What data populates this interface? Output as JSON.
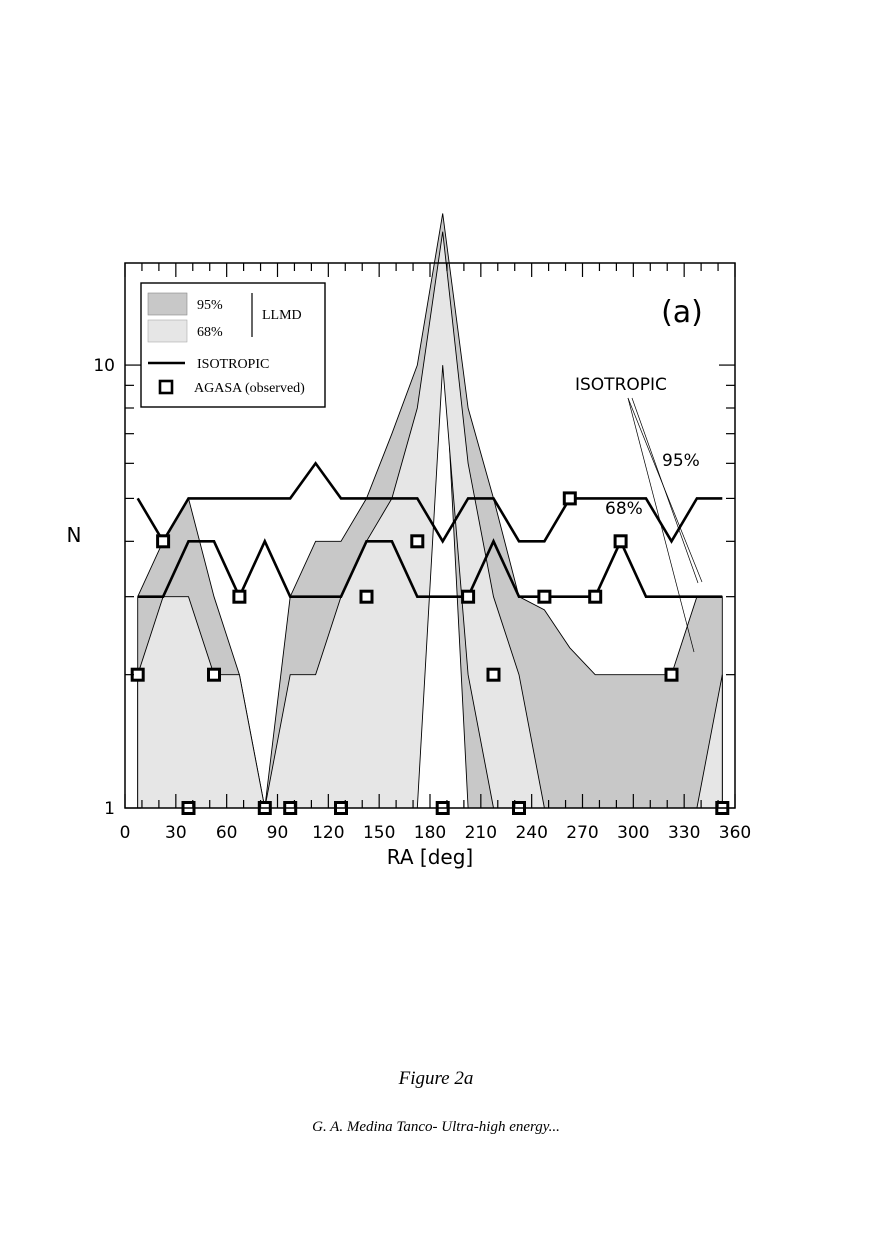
{
  "caption": {
    "title": "Figure 2a",
    "credit": "G. A. Medina Tanco- Ultra-high energy..."
  },
  "chart_data": {
    "type": "line",
    "panel_label": "(a)",
    "xlabel": "RA [deg]",
    "ylabel": "N",
    "xlim": [
      0,
      360
    ],
    "ylim": [
      1,
      17
    ],
    "yscale": "log",
    "x_ticks": [
      0,
      30,
      60,
      90,
      120,
      150,
      180,
      210,
      240,
      270,
      300,
      330,
      360
    ],
    "y_ticks": [
      1,
      10
    ],
    "grid": false,
    "legend": {
      "placement": "top-left",
      "entries": [
        "95%",
        "68%",
        "ISOTROPIC",
        "AGASA (observed)"
      ],
      "group_label": "LLMD"
    },
    "annotations": {
      "isotropic": "ISOTROPIC",
      "pct95": "95%",
      "pct68": "68%"
    },
    "band_95": {
      "x": [
        7.5,
        22.5,
        37.5,
        52.5,
        67.5,
        82.5,
        97.5,
        112.5,
        127.5,
        142.5,
        157.5,
        172.5,
        187.5,
        202.5,
        217.5,
        232.5,
        247.5,
        262.5,
        277.5,
        292.5,
        307.5,
        322.5,
        337.5,
        352.5
      ],
      "upper": [
        3,
        4,
        5,
        3,
        2,
        1,
        3,
        4,
        4,
        5,
        7,
        10,
        22,
        8,
        5,
        3,
        2.8,
        2.3,
        2,
        2,
        2,
        2,
        3,
        3
      ],
      "lower": [
        1,
        1,
        1,
        1,
        1,
        1,
        1,
        1,
        1,
        1,
        1,
        2,
        13,
        1,
        1,
        1,
        1,
        1,
        1,
        1,
        1,
        1,
        1,
        1
      ]
    },
    "band_68": {
      "x": [
        7.5,
        22.5,
        37.5,
        52.5,
        67.5,
        82.5,
        97.5,
        112.5,
        127.5,
        142.5,
        157.5,
        172.5,
        187.5,
        202.5,
        217.5,
        232.5,
        247.5,
        262.5,
        277.5,
        292.5,
        307.5,
        322.5,
        337.5,
        352.5
      ],
      "upper": [
        2,
        3,
        3,
        2,
        2,
        1,
        2,
        2,
        3,
        4,
        5,
        8,
        20,
        6,
        3,
        2,
        1,
        1,
        1,
        1,
        1,
        1,
        1,
        2
      ],
      "lower": [
        1,
        1,
        1,
        1,
        1,
        1,
        1,
        1,
        1,
        1,
        1,
        1,
        10,
        2,
        1,
        1,
        1,
        1,
        1,
        1,
        1,
        1,
        1,
        1
      ]
    },
    "series": [
      {
        "name": "ISOTROPIC",
        "role": "isotropic-95",
        "x": [
          7.5,
          22.5,
          37.5,
          52.5,
          67.5,
          82.5,
          97.5,
          112.5,
          127.5,
          142.5,
          157.5,
          172.5,
          187.5,
          202.5,
          217.5,
          232.5,
          247.5,
          262.5,
          277.5,
          292.5,
          307.5,
          322.5,
          337.5,
          352.5
        ],
        "values": [
          5,
          4,
          5,
          5,
          5,
          5,
          5,
          6,
          5,
          5,
          5,
          5,
          4,
          5,
          5,
          4,
          4,
          5,
          5,
          5,
          5,
          4,
          5,
          5
        ]
      },
      {
        "name": "ISOTROPIC",
        "role": "isotropic-68",
        "x": [
          7.5,
          22.5,
          37.5,
          52.5,
          67.5,
          82.5,
          97.5,
          112.5,
          127.5,
          142.5,
          157.5,
          172.5,
          187.5,
          202.5,
          217.5,
          232.5,
          247.5,
          262.5,
          277.5,
          292.5,
          307.5,
          322.5,
          337.5,
          352.5
        ],
        "values": [
          3,
          3,
          4,
          4,
          3,
          4,
          3,
          3,
          3,
          4,
          4,
          3,
          3,
          3,
          4,
          3,
          3,
          3,
          3,
          4,
          3,
          3,
          3,
          3
        ]
      },
      {
        "name": "AGASA (observed)",
        "role": "observed",
        "x": [
          7.5,
          22.5,
          37.5,
          52.5,
          67.5,
          82.5,
          97.5,
          127.5,
          142.5,
          172.5,
          187.5,
          202.5,
          217.5,
          232.5,
          247.5,
          262.5,
          277.5,
          292.5,
          322.5,
          352.5
        ],
        "values": [
          2,
          4,
          1,
          2,
          3,
          1,
          1,
          1,
          3,
          4,
          1,
          3,
          2,
          1,
          3,
          5,
          3,
          4,
          2,
          1
        ]
      }
    ],
    "colors": {
      "band_95": "#c8c8c8",
      "band_68": "#e6e6e6",
      "line": "#000000"
    }
  }
}
